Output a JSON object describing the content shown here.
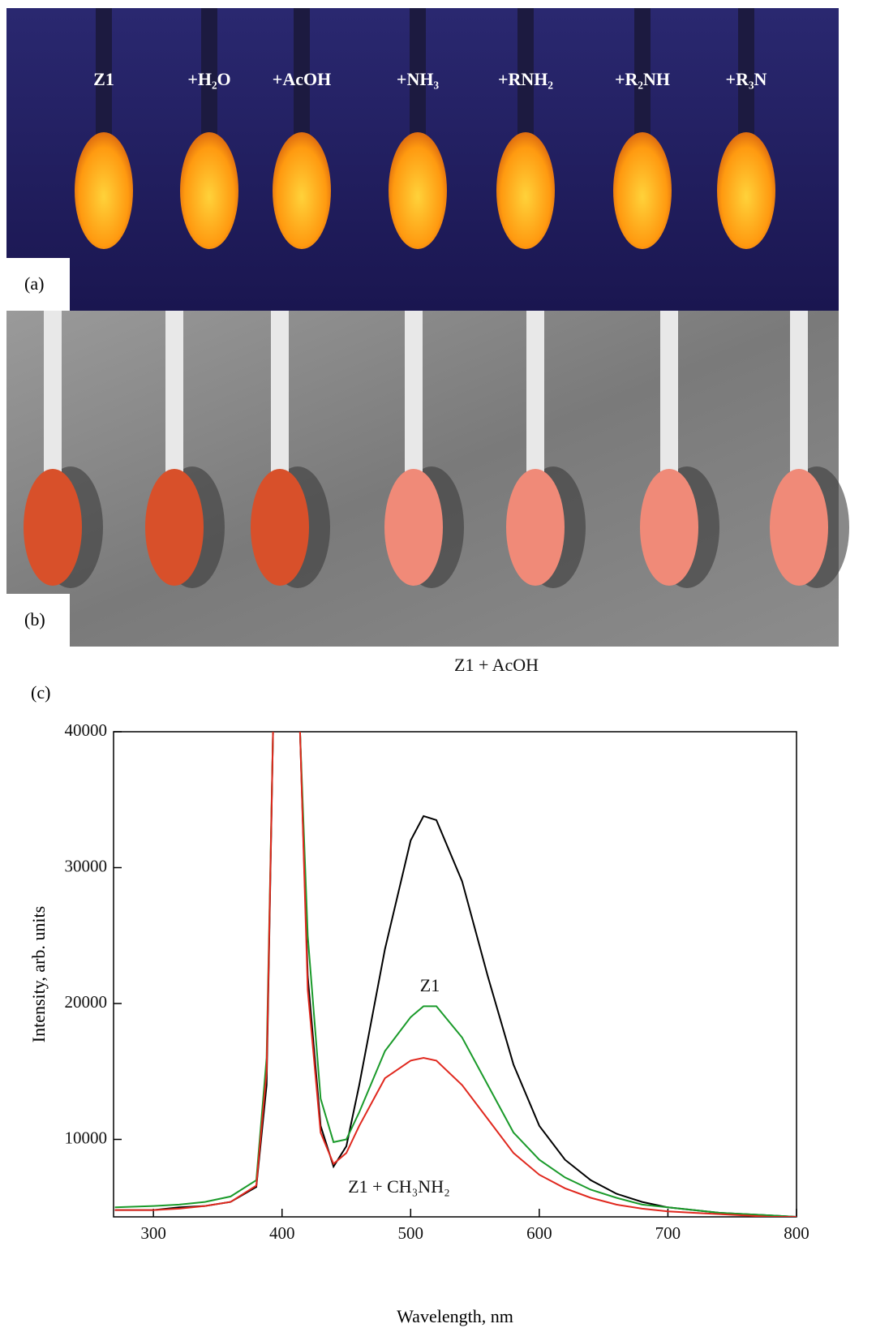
{
  "panels": [
    {
      "label": "(a)",
      "samples": [
        "Z1",
        "+H₂O",
        "+AcOH",
        "+NH₃",
        "+RNH₂",
        "+R₂NH",
        "+R₃N"
      ]
    },
    {
      "label": "(b)"
    }
  ],
  "chart_panel_label": "(c)",
  "chart_data": {
    "type": "line",
    "x_label": "Wavelength, nm",
    "y_label": "Intensity, arb. units",
    "x": [
      270,
      300,
      320,
      340,
      360,
      380,
      388,
      393,
      403,
      414,
      420,
      430,
      440,
      450,
      460,
      480,
      500,
      510,
      520,
      540,
      560,
      580,
      600,
      620,
      640,
      660,
      680,
      700,
      720,
      740,
      760,
      780,
      800
    ],
    "series": [
      {
        "name": "Z1 + AcOH",
        "color": "#000000",
        "values": [
          4800,
          4800,
          5000,
          5100,
          5400,
          6500,
          14000,
          40000,
          null,
          40000,
          22000,
          11000,
          8000,
          9500,
          14000,
          24000,
          32000,
          33800,
          33500,
          29000,
          22000,
          15500,
          11000,
          8500,
          7000,
          6000,
          5400,
          5000,
          4800,
          4600,
          4500,
          4400,
          4300
        ]
      },
      {
        "name": "Z1",
        "color": "#1a9a2a",
        "values": [
          5000,
          5100,
          5200,
          5400,
          5800,
          7000,
          16000,
          40000,
          null,
          40000,
          25000,
          13000,
          9800,
          10000,
          12000,
          16500,
          19000,
          19800,
          19800,
          17500,
          14000,
          10500,
          8500,
          7200,
          6300,
          5700,
          5200,
          5000,
          4800,
          4600,
          4500,
          4400,
          4300
        ]
      },
      {
        "name": "Z1 + CH₃NH₂",
        "color": "#e0281e",
        "values": [
          4800,
          4800,
          4900,
          5100,
          5400,
          6600,
          15000,
          40000,
          null,
          40000,
          21000,
          10500,
          8200,
          9000,
          11000,
          14500,
          15800,
          16000,
          15800,
          14000,
          11500,
          9000,
          7400,
          6400,
          5700,
          5200,
          4900,
          4700,
          4600,
          4500,
          4400,
          4300,
          4300
        ]
      }
    ],
    "xlim": [
      269,
      800
    ],
    "ylim": [
      4300,
      40000
    ],
    "xticks": [
      300,
      400,
      500,
      600,
      700,
      800
    ],
    "yticks": [
      10000,
      20000,
      30000,
      40000
    ]
  }
}
